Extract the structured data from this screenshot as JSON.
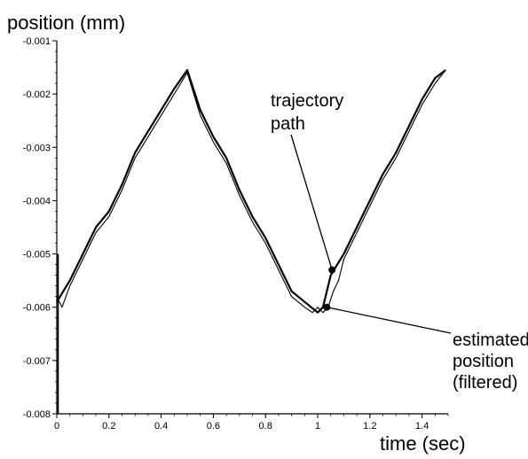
{
  "chart_data": {
    "type": "line",
    "ylabel": "position (mm)",
    "xlabel": "time (sec)",
    "xlim": [
      0,
      1.5
    ],
    "ylim": [
      -0.008,
      -0.001
    ],
    "grid": false,
    "x_ticks": [
      0,
      0.2,
      0.4,
      0.6,
      0.8,
      1,
      1.2,
      1.4
    ],
    "x_tick_labels": [
      "0",
      "0.2",
      "0.4",
      "0.6",
      "0.8",
      "1",
      "1.2",
      "1.4"
    ],
    "y_ticks": [
      -0.001,
      -0.002,
      -0.003,
      -0.004,
      -0.005,
      -0.006,
      -0.007,
      -0.008
    ],
    "y_tick_labels": [
      "-0.001",
      "-0.002",
      "-0.003",
      "-0.004",
      "-0.005",
      "-0.006",
      "-0.007",
      "-0.008"
    ],
    "series": [
      {
        "name": "trajectory path",
        "x": [
          0,
          0.05,
          0.1,
          0.15,
          0.2,
          0.25,
          0.3,
          0.35,
          0.4,
          0.45,
          0.5,
          0.55,
          0.6,
          0.65,
          0.7,
          0.75,
          0.8,
          0.85,
          0.9,
          0.95,
          1.0,
          1.02,
          1.05,
          1.1,
          1.15,
          1.2,
          1.25,
          1.3,
          1.35,
          1.4,
          1.45,
          1.49
        ],
        "y": [
          -0.0059,
          -0.0055,
          -0.005,
          -0.0045,
          -0.0042,
          -0.0037,
          -0.0031,
          -0.0027,
          -0.0023,
          -0.0019,
          -0.00155,
          -0.0023,
          -0.0028,
          -0.0032,
          -0.0038,
          -0.0043,
          -0.0047,
          -0.0052,
          -0.0057,
          -0.0059,
          -0.0061,
          -0.006,
          -0.0054,
          -0.005,
          -0.0045,
          -0.004,
          -0.0035,
          -0.0031,
          -0.0026,
          -0.0021,
          -0.0017,
          -0.00155
        ]
      },
      {
        "name": "estimated position (filtered)",
        "x": [
          0,
          0.02,
          0.05,
          0.1,
          0.15,
          0.2,
          0.25,
          0.3,
          0.35,
          0.4,
          0.45,
          0.5,
          0.55,
          0.6,
          0.65,
          0.7,
          0.75,
          0.8,
          0.85,
          0.9,
          0.95,
          0.98,
          1.0,
          1.02,
          1.04,
          1.06,
          1.08,
          1.1,
          1.15,
          1.2,
          1.25,
          1.3,
          1.35,
          1.4,
          1.45,
          1.49
        ],
        "y": [
          -0.0058,
          -0.006,
          -0.0056,
          -0.0051,
          -0.0046,
          -0.0043,
          -0.0038,
          -0.0032,
          -0.0028,
          -0.0024,
          -0.002,
          -0.0016,
          -0.0024,
          -0.0029,
          -0.0033,
          -0.0039,
          -0.0044,
          -0.0048,
          -0.0053,
          -0.0058,
          -0.006,
          -0.0061,
          -0.006,
          -0.0061,
          -0.006,
          -0.0057,
          -0.0055,
          -0.0051,
          -0.0046,
          -0.0041,
          -0.0036,
          -0.0032,
          -0.0027,
          -0.0022,
          -0.0018,
          -0.00155
        ]
      }
    ],
    "spike": {
      "x": 0.005,
      "y_top": -0.005,
      "y_bottom": -0.008
    },
    "annotations": [
      {
        "lines": [
          "trajectory",
          "path"
        ],
        "point_x": 1.055,
        "point_y": -0.0053
      },
      {
        "lines": [
          "estimated",
          "position",
          "(filtered)"
        ],
        "point_x": 1.035,
        "point_y": -0.006
      }
    ]
  }
}
